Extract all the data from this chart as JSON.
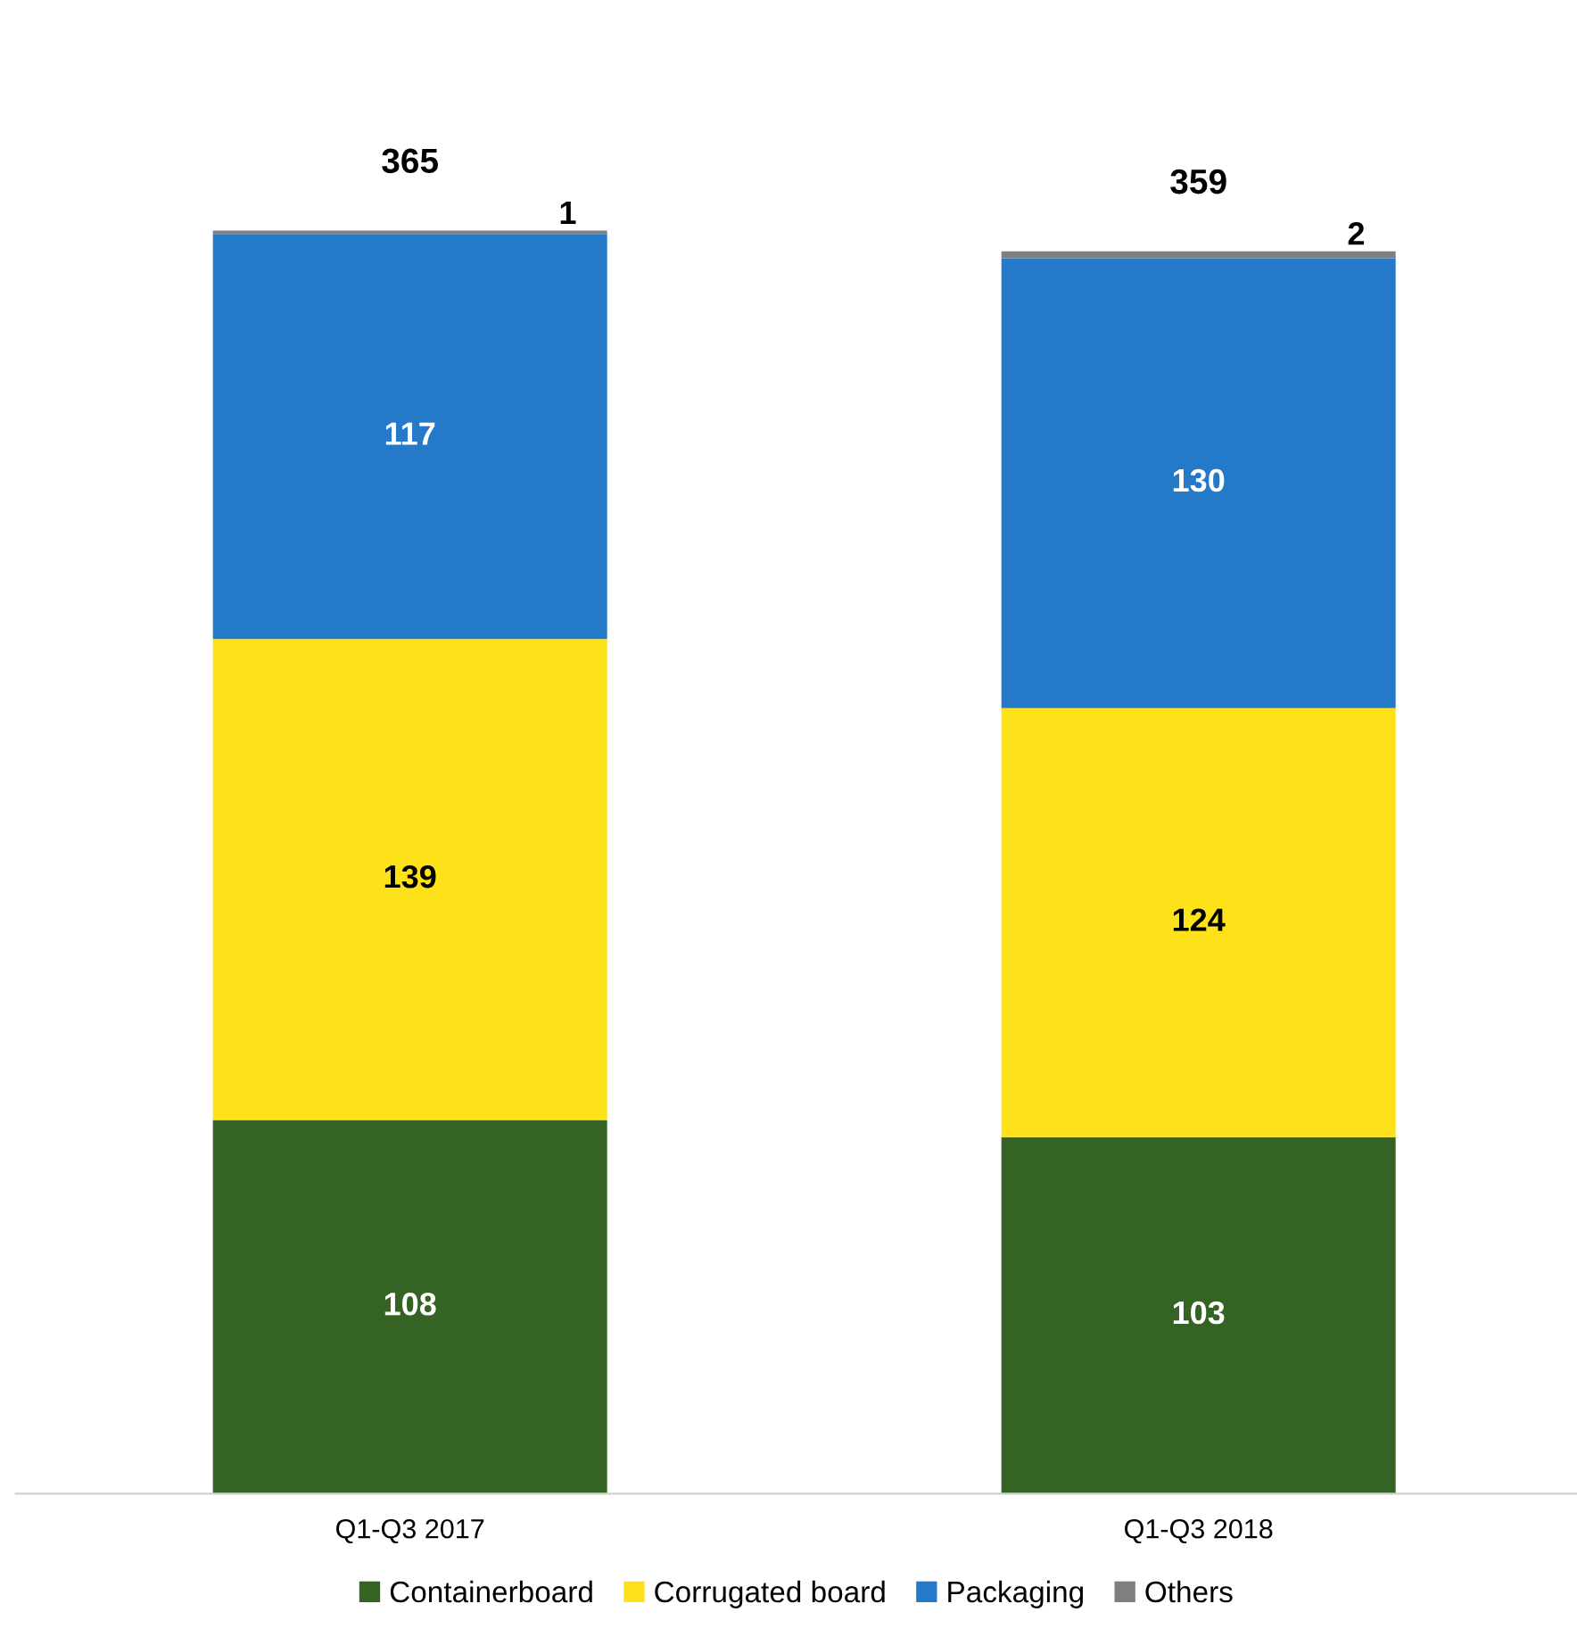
{
  "chart_data": {
    "type": "bar",
    "stacked": true,
    "categories": [
      "Q1-Q3 2017",
      "Q1-Q3 2018"
    ],
    "series": [
      {
        "name": "Containerboard",
        "color": "#346323",
        "values": [
          108,
          103
        ]
      },
      {
        "name": "Corrugated board",
        "color": "#fde21a",
        "values": [
          139,
          124
        ]
      },
      {
        "name": "Packaging",
        "color": "#2479c9",
        "values": [
          117,
          130
        ]
      },
      {
        "name": "Others",
        "color": "#7f7f7f",
        "values": [
          1,
          2
        ]
      }
    ],
    "data_labels": true,
    "totals": [
      "365",
      "359"
    ],
    "legend": "bottom",
    "grid": false
  }
}
